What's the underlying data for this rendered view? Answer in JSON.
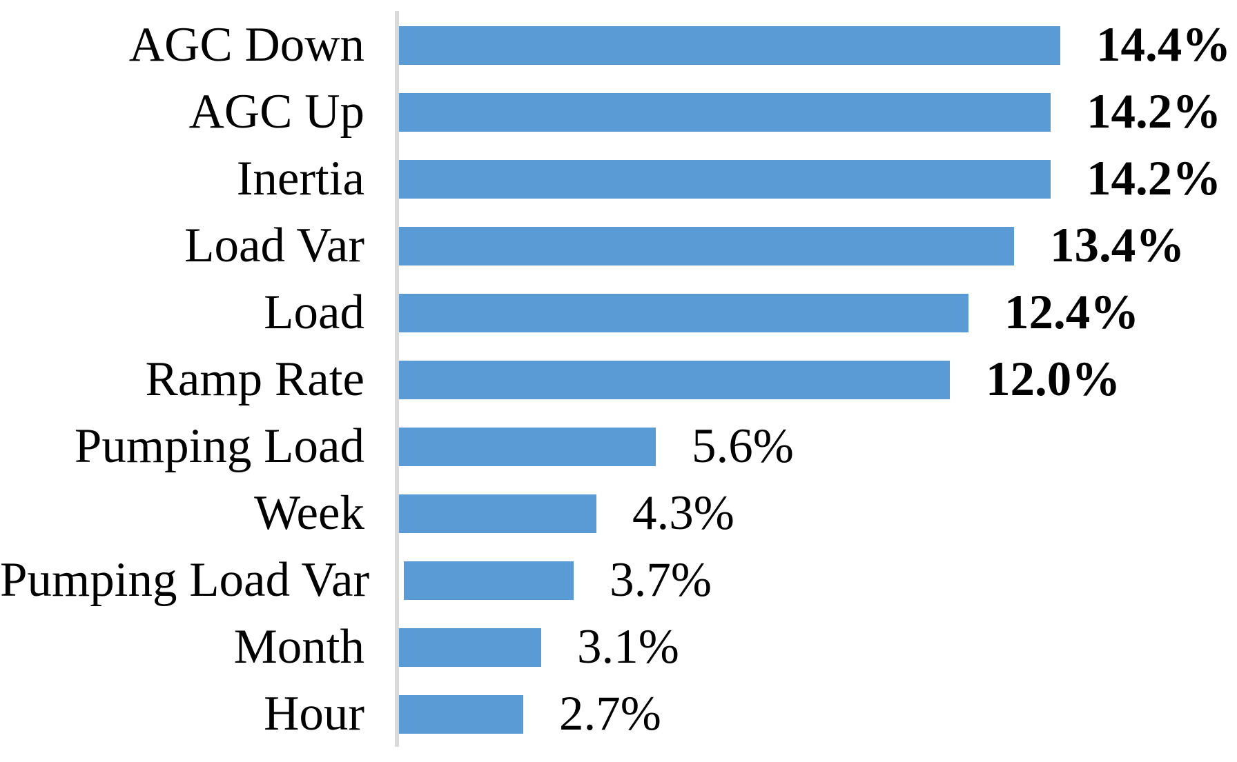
{
  "chart_data": {
    "type": "bar",
    "orientation": "horizontal",
    "title": "",
    "xlabel": "",
    "ylabel": "",
    "grid": false,
    "legend": "none",
    "value_label_position": "outside-end",
    "bold_value_labels_count": 6,
    "categories": [
      "AGC Down",
      "AGC Up",
      "Inertia",
      "Load Var",
      "Load",
      "Ramp Rate",
      "Pumping Load",
      "Week",
      "Pumping Load Var",
      "Month",
      "Hour"
    ],
    "values": [
      14.4,
      14.2,
      14.2,
      13.4,
      12.4,
      12.0,
      5.6,
      4.3,
      3.7,
      3.1,
      2.7
    ],
    "labels": [
      "14.4%",
      "14.2%",
      "14.2%",
      "13.4%",
      "12.4%",
      "12.0%",
      "5.6%",
      "4.3%",
      "3.7%",
      "3.1%",
      "2.7%"
    ],
    "xlim": [
      0,
      18.25
    ]
  },
  "colors": {
    "bar": "#5b9bd5",
    "axis_line": "#d9d9d9",
    "text": "#000000",
    "background": "#ffffff"
  }
}
